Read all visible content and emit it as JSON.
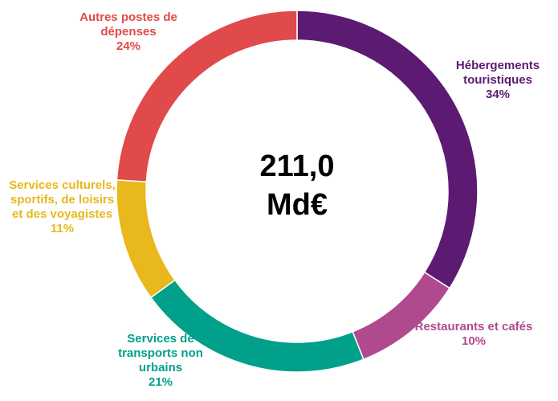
{
  "chart_data": {
    "type": "donut",
    "center_label": "211,0 Md€",
    "categories": [
      "Hébergements touristiques",
      "Restaurants et cafés",
      "Services de transports non urbains",
      "Services culturels, sportifs, de loisirs et des voyagistes",
      "Autres postes de dépenses"
    ],
    "values": [
      34,
      10,
      21,
      11,
      24
    ],
    "value_labels": [
      "34%",
      "10%",
      "21%",
      "11%",
      "24%"
    ],
    "colors": [
      "#5c1a73",
      "#b04a8f",
      "#00a08a",
      "#e8b81c",
      "#e04a4a"
    ]
  }
}
